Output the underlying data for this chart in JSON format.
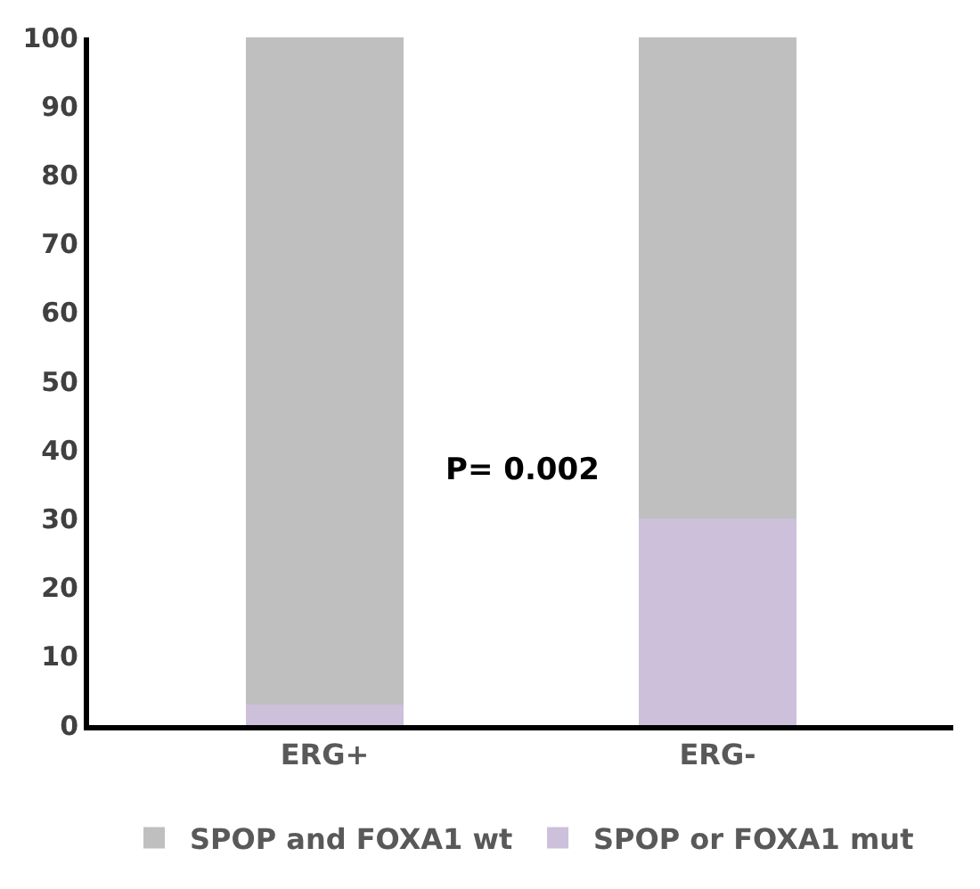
{
  "chart_data": {
    "type": "bar",
    "stacked": true,
    "categories": [
      "ERG+",
      "ERG-"
    ],
    "series": [
      {
        "name": "SPOP or FOXA1 mut",
        "color": "#ccc0da",
        "values": [
          3,
          30
        ]
      },
      {
        "name": "SPOP and FOXA1 wt",
        "color": "#bfbfbf",
        "values": [
          97,
          70
        ]
      }
    ],
    "ylim": [
      0,
      100
    ],
    "yticks": [
      0,
      10,
      20,
      30,
      40,
      50,
      60,
      70,
      80,
      90,
      100
    ],
    "legend": "bottom",
    "annotations": [
      "P= 0.002"
    ]
  }
}
